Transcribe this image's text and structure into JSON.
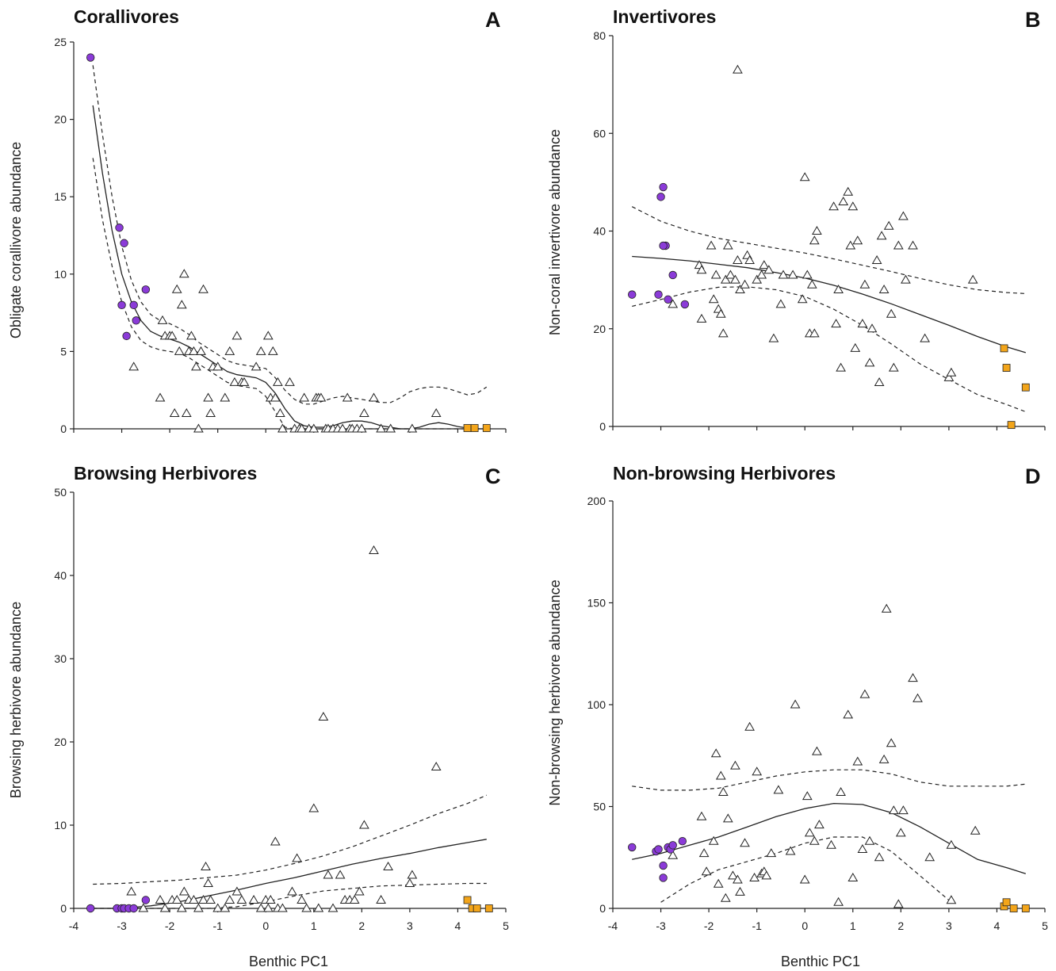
{
  "colors": {
    "purple": "#8b3bd8",
    "orange": "#f3a51a",
    "line": "#222222",
    "triangle_fill": "#ffffff"
  },
  "chart_data": [
    {
      "panel": "A",
      "type": "scatter",
      "title": "Corallivores",
      "letter": "A",
      "xlabel": "",
      "ylabel": "Obligate corallivore abundance",
      "xlim": [
        -4,
        5
      ],
      "ylim": [
        0,
        25
      ],
      "xticks": [],
      "yticks": [
        0,
        5,
        10,
        15,
        20,
        25
      ],
      "fit": {
        "x": [
          -3.6,
          -3.4,
          -3.2,
          -3.0,
          -2.8,
          -2.6,
          -2.4,
          -2.2,
          -2.0,
          -1.8,
          -1.6,
          -1.4,
          -1.2,
          -1.0,
          -0.8,
          -0.6,
          -0.4,
          -0.2,
          0.0,
          0.2,
          0.4,
          0.6,
          0.8,
          1.0,
          1.2,
          1.4,
          1.6,
          1.8,
          2.0,
          2.2,
          2.4,
          2.6,
          2.8,
          3.0,
          3.2,
          3.4,
          3.6,
          3.8,
          4.0,
          4.2,
          4.4,
          4.6
        ],
        "mid": [
          20.9,
          16.5,
          12.8,
          10.0,
          8.2,
          7.0,
          6.3,
          6.0,
          5.8,
          5.6,
          5.3,
          4.9,
          4.5,
          4.1,
          3.7,
          3.5,
          3.4,
          3.3,
          3.0,
          2.3,
          1.3,
          0.5,
          0.2,
          0.1,
          0.1,
          0.2,
          0.4,
          0.5,
          0.5,
          0.4,
          0.2,
          0.1,
          0.0,
          0.0,
          0.1,
          0.3,
          0.4,
          0.3,
          0.15,
          0.05,
          0.0,
          0.0
        ],
        "upper": [
          23.5,
          19.0,
          15.0,
          11.8,
          9.6,
          8.2,
          7.4,
          7.0,
          6.8,
          6.5,
          6.1,
          5.6,
          5.2,
          4.8,
          4.4,
          4.2,
          4.1,
          4.0,
          3.9,
          3.3,
          2.5,
          1.9,
          1.6,
          1.6,
          1.8,
          2.0,
          2.1,
          2.0,
          1.9,
          1.8,
          1.7,
          1.7,
          2.0,
          2.4,
          2.6,
          2.7,
          2.7,
          2.6,
          2.4,
          2.2,
          2.3,
          2.7
        ],
        "lower": [
          17.5,
          13.5,
          10.5,
          8.2,
          6.6,
          5.7,
          5.3,
          5.1,
          5.0,
          4.9,
          4.6,
          4.2,
          3.8,
          3.4,
          3.0,
          2.8,
          2.7,
          2.6,
          2.1,
          1.1,
          0.1,
          0.0,
          0.0,
          0.0,
          0.0,
          0.0,
          0.0,
          0.0,
          0.0,
          0.0,
          0.0,
          0.0,
          0.0,
          0.0,
          0.0,
          0.0,
          0.0,
          0.0,
          0.0,
          0.0,
          0.0,
          0.0
        ]
      },
      "series": [
        {
          "name": "",
          "marker": "circle",
          "color": "#8b3bd8",
          "x": [
            -3.65,
            -3.05,
            -3.0,
            -2.95,
            -2.9,
            -2.75,
            -2.7,
            -2.5
          ],
          "y": [
            24,
            13,
            8,
            12,
            6,
            8,
            7,
            9
          ]
        },
        {
          "name": "",
          "marker": "square",
          "color": "#f3a51a",
          "x": [
            4.2,
            4.35,
            4.6
          ],
          "y": [
            0.05,
            0.05,
            0.05
          ]
        },
        {
          "name": "",
          "marker": "triangle",
          "color": "#ffffff",
          "x": [
            -2.75,
            -2.2,
            -2.15,
            -2.1,
            -2.0,
            -1.95,
            -1.9,
            -1.85,
            -1.8,
            -1.75,
            -1.7,
            -1.65,
            -1.6,
            -1.55,
            -1.5,
            -1.45,
            -1.4,
            -1.35,
            -1.3,
            -1.2,
            -1.15,
            -1.1,
            -1.0,
            -0.85,
            -0.75,
            -0.65,
            -0.6,
            -0.5,
            -0.45,
            -0.2,
            -0.1,
            0.05,
            0.1,
            0.15,
            0.2,
            0.25,
            0.3,
            0.35,
            0.5,
            0.6,
            0.7,
            0.75,
            0.8,
            0.9,
            1.0,
            1.05,
            1.1,
            1.15,
            1.25,
            1.3,
            1.4,
            1.5,
            1.6,
            1.7,
            1.75,
            1.8,
            1.9,
            2.0,
            2.05,
            2.25,
            2.4,
            2.6,
            3.05,
            3.55
          ],
          "y": [
            4,
            2,
            7,
            6,
            6,
            6,
            1,
            9,
            5,
            8,
            10,
            1,
            5,
            6,
            5,
            4,
            0,
            5,
            9,
            2,
            1,
            4,
            4,
            2,
            5,
            3,
            6,
            3,
            3,
            4,
            5,
            6,
            2,
            5,
            2,
            3,
            1,
            0,
            3,
            0,
            0,
            0,
            2,
            0,
            0,
            2,
            2,
            2,
            0,
            0,
            0,
            0,
            0,
            2,
            0,
            0,
            0,
            0,
            1,
            2,
            0,
            0,
            0,
            1
          ]
        }
      ]
    },
    {
      "panel": "B",
      "type": "scatter",
      "title": "Invertivores",
      "letter": "B",
      "xlabel": "",
      "ylabel": "Non-coral invertivore abundance",
      "xlim": [
        -4,
        5
      ],
      "ylim": [
        0,
        80
      ],
      "xticks": [],
      "yticks": [
        0,
        20,
        40,
        60,
        80
      ],
      "fit": {
        "x": [
          -3.6,
          -3.0,
          -2.4,
          -1.8,
          -1.2,
          -0.6,
          0.0,
          0.6,
          1.2,
          1.8,
          2.4,
          3.0,
          3.6,
          4.2,
          4.6
        ],
        "mid": [
          34.8,
          34.4,
          33.9,
          33.2,
          32.5,
          31.5,
          30.4,
          28.9,
          27.1,
          25.1,
          22.9,
          20.7,
          18.4,
          16.3,
          15.1
        ],
        "upper": [
          45.0,
          42.0,
          40.0,
          38.5,
          37.5,
          36.5,
          35.5,
          34.3,
          33.0,
          31.7,
          30.3,
          29.0,
          28.0,
          27.4,
          27.2
        ],
        "lower": [
          24.6,
          26.0,
          27.5,
          28.5,
          28.6,
          28.0,
          26.6,
          24.0,
          20.7,
          16.9,
          12.8,
          9.6,
          6.5,
          4.5,
          3.0
        ]
      },
      "series": [
        {
          "name": "",
          "marker": "circle",
          "color": "#8b3bd8",
          "x": [
            -3.6,
            -3.05,
            -3.0,
            -2.95,
            -2.9,
            -2.85,
            -2.75,
            -2.5,
            -2.95
          ],
          "y": [
            27,
            27,
            47,
            49,
            37,
            26,
            31,
            25,
            37
          ]
        },
        {
          "name": "",
          "marker": "square",
          "color": "#f3a51a",
          "x": [
            4.15,
            4.2,
            4.3,
            4.6
          ],
          "y": [
            16,
            12,
            0.3,
            8
          ]
        },
        {
          "name": "",
          "marker": "triangle",
          "color": "#ffffff",
          "x": [
            -2.75,
            -2.2,
            -2.15,
            -2.15,
            -1.95,
            -1.9,
            -1.85,
            -1.8,
            -1.75,
            -1.7,
            -1.65,
            -1.6,
            -1.55,
            -1.45,
            -1.4,
            -1.35,
            -1.25,
            -1.2,
            -1.15,
            -1.0,
            -0.9,
            -0.85,
            -0.75,
            -0.65,
            -0.5,
            -0.45,
            -0.25,
            -0.05,
            0.0,
            0.05,
            0.1,
            0.15,
            0.2,
            0.2,
            0.25,
            0.6,
            0.65,
            0.7,
            0.75,
            0.8,
            0.9,
            0.95,
            1.0,
            1.05,
            1.1,
            1.2,
            1.25,
            1.35,
            1.4,
            1.5,
            1.55,
            1.6,
            1.65,
            1.75,
            1.8,
            1.85,
            1.95,
            2.05,
            2.1,
            2.25,
            2.5,
            3.0,
            3.05,
            3.5,
            -1.4
          ],
          "y": [
            25,
            33,
            32,
            22,
            37,
            26,
            31,
            24,
            23,
            19,
            30,
            37,
            31,
            30,
            34,
            28,
            29,
            35,
            34,
            30,
            31,
            33,
            32,
            18,
            25,
            31,
            31,
            26,
            51,
            31,
            19,
            29,
            19,
            38,
            40,
            45,
            21,
            28,
            12,
            46,
            48,
            37,
            45,
            16,
            38,
            21,
            29,
            13,
            20,
            34,
            9,
            39,
            28,
            41,
            23,
            12,
            37,
            43,
            30,
            37,
            18,
            10,
            11,
            30,
            73
          ],
          "note": ""
        }
      ]
    },
    {
      "panel": "C",
      "type": "scatter",
      "title": "Browsing Herbivores",
      "letter": "C",
      "xlabel": "Benthic PC1",
      "ylabel": "Browsing herbivore abundance",
      "xlim": [
        -4,
        5
      ],
      "ylim": [
        0,
        50
      ],
      "xticks": [
        -4,
        -3,
        -2,
        -1,
        0,
        1,
        2,
        3,
        4,
        5
      ],
      "yticks": [
        0,
        10,
        20,
        30,
        40,
        50
      ],
      "fit": {
        "x": [
          -3.6,
          -3.0,
          -2.4,
          -1.8,
          -1.2,
          -0.6,
          0.0,
          0.6,
          1.2,
          1.8,
          2.4,
          3.0,
          3.6,
          4.2,
          4.6
        ],
        "mid": [
          0.0,
          0.0,
          0.3,
          0.8,
          1.5,
          2.2,
          3.0,
          3.7,
          4.5,
          5.3,
          6.0,
          6.6,
          7.3,
          7.9,
          8.3
        ],
        "upper": [
          2.9,
          3.0,
          3.2,
          3.4,
          3.7,
          4.0,
          4.6,
          5.4,
          6.3,
          7.4,
          8.7,
          10.0,
          11.4,
          12.6,
          13.6
        ],
        "lower": [
          0.0,
          0.0,
          0.0,
          0.0,
          0.0,
          0.2,
          0.8,
          1.5,
          2.1,
          2.4,
          2.7,
          2.8,
          2.9,
          3.0,
          3.0
        ]
      },
      "series": [
        {
          "name": "",
          "marker": "circle",
          "color": "#8b3bd8",
          "x": [
            -3.65,
            -3.1,
            -3.0,
            -2.95,
            -2.85,
            -2.75,
            -2.5
          ],
          "y": [
            0,
            0,
            0,
            0,
            0,
            0,
            1
          ]
        },
        {
          "name": "",
          "marker": "square",
          "color": "#f3a51a",
          "x": [
            4.2,
            4.3,
            4.4,
            4.65
          ],
          "y": [
            1,
            0,
            0,
            0
          ]
        },
        {
          "name": "",
          "marker": "triangle",
          "color": "#ffffff",
          "x": [
            -2.8,
            -2.55,
            -2.2,
            -2.1,
            -1.95,
            -1.85,
            -1.75,
            -1.7,
            -1.6,
            -1.5,
            -1.4,
            -1.3,
            -1.25,
            -1.2,
            -1.15,
            -1.0,
            -0.85,
            -0.75,
            -0.6,
            -0.5,
            -0.25,
            -0.1,
            0.0,
            0.05,
            0.1,
            0.2,
            0.25,
            0.35,
            0.55,
            0.65,
            0.75,
            0.85,
            1.0,
            1.1,
            1.2,
            1.3,
            1.4,
            1.55,
            1.65,
            1.75,
            1.85,
            1.95,
            2.05,
            2.25,
            2.4,
            2.55,
            3.0,
            3.05,
            3.55
          ],
          "y": [
            2,
            0,
            1,
            0,
            1,
            1,
            0,
            2,
            1,
            1,
            0,
            1,
            5,
            3,
            1,
            0,
            0,
            1,
            2,
            1,
            1,
            0,
            1,
            0,
            1,
            8,
            0,
            0,
            2,
            6,
            1,
            0,
            12,
            0,
            23,
            4,
            0,
            4,
            1,
            1,
            1,
            2,
            10,
            43,
            1,
            5,
            3,
            4,
            17
          ]
        }
      ]
    },
    {
      "panel": "D",
      "type": "scatter",
      "title": "Non-browsing Herbivores",
      "letter": "D",
      "xlabel": "Benthic PC1",
      "ylabel": "Non-browsing herbivore abundance",
      "xlim": [
        -4,
        5
      ],
      "ylim": [
        0,
        200
      ],
      "xticks": [
        -4,
        -3,
        -2,
        -1,
        0,
        1,
        2,
        3,
        4,
        5
      ],
      "yticks": [
        0,
        50,
        100,
        150,
        200
      ],
      "fit": {
        "x": [
          -3.6,
          -3.0,
          -2.4,
          -1.8,
          -1.2,
          -0.6,
          0.0,
          0.6,
          1.2,
          1.8,
          2.4,
          3.0,
          3.6,
          4.2,
          4.6
        ],
        "mid": [
          24,
          27,
          31,
          35,
          40,
          45,
          49,
          51.5,
          51,
          47,
          40,
          32,
          24,
          20,
          17
        ],
        "upper": [
          60,
          58,
          58,
          59,
          62,
          65,
          67,
          68,
          68,
          66,
          62,
          60,
          60,
          60,
          61
        ],
        "lower": [
          null,
          3,
          12,
          19,
          23,
          27,
          32,
          35,
          35,
          28,
          16,
          4,
          null,
          null,
          null
        ]
      },
      "series": [
        {
          "name": "",
          "marker": "circle",
          "color": "#8b3bd8",
          "x": [
            -3.6,
            -3.1,
            -3.05,
            -2.95,
            -2.95,
            -2.85,
            -2.8,
            -2.75,
            -2.55
          ],
          "y": [
            30,
            28,
            29,
            21,
            15,
            30,
            29,
            31,
            33
          ]
        },
        {
          "name": "",
          "marker": "square",
          "color": "#f3a51a",
          "x": [
            4.15,
            4.2,
            4.35,
            4.6
          ],
          "y": [
            1,
            3,
            0,
            0
          ]
        },
        {
          "name": "",
          "marker": "triangle",
          "color": "#ffffff",
          "x": [
            -2.75,
            -2.15,
            -2.1,
            -2.05,
            -1.9,
            -1.85,
            -1.8,
            -1.75,
            -1.7,
            -1.65,
            -1.6,
            -1.5,
            -1.45,
            -1.4,
            -1.35,
            -1.25,
            -1.15,
            -1.05,
            -1.0,
            -0.9,
            -0.85,
            -0.8,
            -0.7,
            -0.55,
            -0.3,
            -0.2,
            0.0,
            0.05,
            0.1,
            0.2,
            0.25,
            0.3,
            0.55,
            0.7,
            0.75,
            0.9,
            1.0,
            1.1,
            1.2,
            1.25,
            1.35,
            1.55,
            1.65,
            1.7,
            1.8,
            1.85,
            1.95,
            2.0,
            2.05,
            2.25,
            2.35,
            2.6,
            3.05,
            3.05,
            3.55
          ],
          "y": [
            26,
            45,
            27,
            18,
            33,
            76,
            12,
            65,
            57,
            5,
            44,
            16,
            70,
            14,
            8,
            32,
            89,
            15,
            67,
            17,
            18,
            16,
            27,
            58,
            28,
            100,
            14,
            55,
            37,
            33,
            77,
            41,
            31,
            3,
            57,
            95,
            15,
            72,
            29,
            105,
            33,
            25,
            73,
            147,
            81,
            48,
            2,
            37,
            48,
            113,
            103,
            25,
            31,
            4,
            38
          ]
        }
      ]
    }
  ]
}
